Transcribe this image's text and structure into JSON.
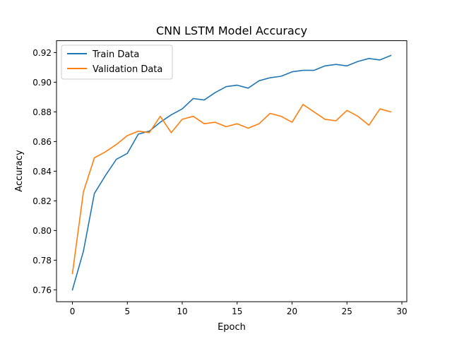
{
  "chart_data": {
    "type": "line",
    "title": "CNN LSTM Model Accuracy",
    "xlabel": "Epoch",
    "ylabel": "Accuracy",
    "xlim": [
      -1.45,
      30.45
    ],
    "ylim": [
      0.752,
      0.928
    ],
    "xticks": [
      0,
      5,
      10,
      15,
      20,
      25,
      30
    ],
    "yticks": [
      0.76,
      0.78,
      0.8,
      0.82,
      0.84,
      0.86,
      0.88,
      0.9,
      0.92
    ],
    "xtick_labels": [
      "0",
      "5",
      "10",
      "15",
      "20",
      "25",
      "30"
    ],
    "ytick_labels": [
      "0.76",
      "0.78",
      "0.80",
      "0.82",
      "0.84",
      "0.86",
      "0.88",
      "0.90",
      "0.92"
    ],
    "grid": false,
    "legend_position": "top-left",
    "x": [
      0,
      1,
      2,
      3,
      4,
      5,
      6,
      7,
      8,
      9,
      10,
      11,
      12,
      13,
      14,
      15,
      16,
      17,
      18,
      19,
      20,
      21,
      22,
      23,
      24,
      25,
      26,
      27,
      28,
      29
    ],
    "series": [
      {
        "name": "Train Data",
        "color": "#1f77b4",
        "values": [
          0.76,
          0.786,
          0.825,
          0.837,
          0.848,
          0.852,
          0.865,
          0.867,
          0.873,
          0.878,
          0.882,
          0.889,
          0.888,
          0.893,
          0.897,
          0.898,
          0.896,
          0.901,
          0.903,
          0.904,
          0.907,
          0.908,
          0.908,
          0.911,
          0.912,
          0.911,
          0.914,
          0.916,
          0.915,
          0.918
        ]
      },
      {
        "name": "Validation Data",
        "color": "#ff7f0e",
        "values": [
          0.771,
          0.826,
          0.849,
          0.853,
          0.858,
          0.864,
          0.867,
          0.866,
          0.877,
          0.866,
          0.875,
          0.877,
          0.872,
          0.873,
          0.87,
          0.872,
          0.869,
          0.872,
          0.879,
          0.877,
          0.873,
          0.885,
          0.88,
          0.875,
          0.874,
          0.881,
          0.877,
          0.871,
          0.882,
          0.88
        ]
      }
    ]
  }
}
